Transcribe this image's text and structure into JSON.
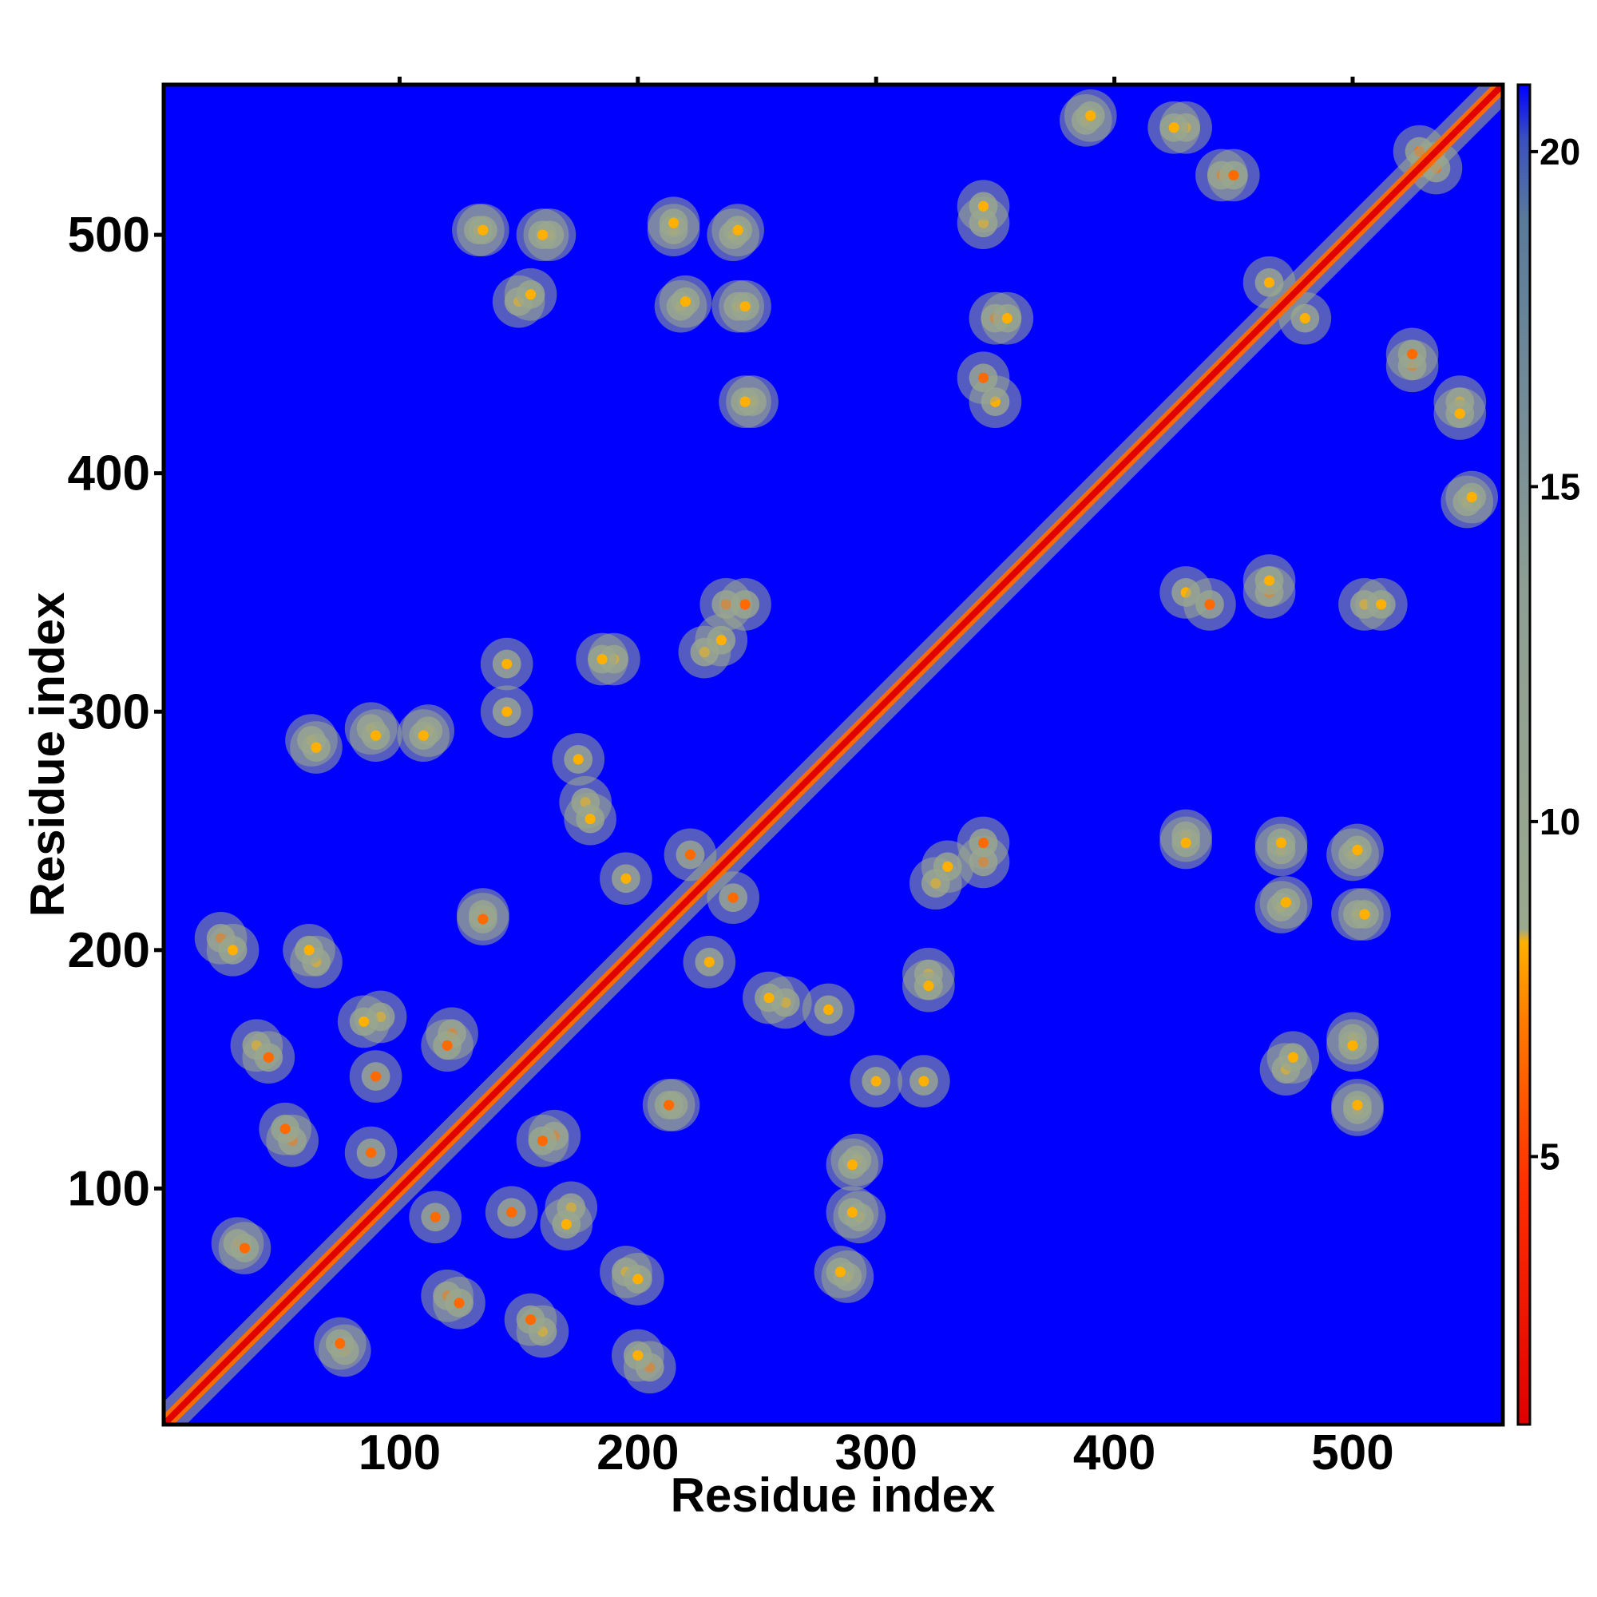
{
  "chart_data": {
    "type": "heatmap",
    "title": "",
    "xlabel": "Residue index",
    "ylabel": "Residue index",
    "xlim": [
      1,
      563
    ],
    "ylim": [
      1,
      563
    ],
    "x_ticks": [
      100,
      200,
      300,
      400,
      500
    ],
    "y_ticks": [
      100,
      200,
      300,
      400,
      500
    ],
    "grid": false,
    "colorbar": {
      "range": [
        1,
        21
      ],
      "ticks": [
        5,
        10,
        15,
        20
      ],
      "threshold_red_max": 8,
      "colors": {
        "low": "#e00000",
        "mid_low": "#ff6a00",
        "mid": "#ffb000",
        "grey": "#9aa88e",
        "grey_blue": "#5a7a9a",
        "high": "#0000ff"
      }
    },
    "matrix_description": "symmetric pairwise residue distance map (Angstrom-like scale); diagonal is minimum distance",
    "contact_clusters": [
      {
        "x": 25,
        "y": 205,
        "d": 6
      },
      {
        "x": 32,
        "y": 77,
        "d": 6
      },
      {
        "x": 40,
        "y": 160,
        "d": 7
      },
      {
        "x": 55,
        "y": 120,
        "d": 6
      },
      {
        "x": 63,
        "y": 288,
        "d": 9
      },
      {
        "x": 65,
        "y": 195,
        "d": 7
      },
      {
        "x": 75,
        "y": 35,
        "d": 5
      },
      {
        "x": 88,
        "y": 293,
        "d": 8
      },
      {
        "x": 90,
        "y": 147,
        "d": 6
      },
      {
        "x": 92,
        "y": 172,
        "d": 7
      },
      {
        "x": 112,
        "y": 292,
        "d": 9
      },
      {
        "x": 115,
        "y": 88,
        "d": 6
      },
      {
        "x": 122,
        "y": 165,
        "d": 5
      },
      {
        "x": 125,
        "y": 52,
        "d": 6
      },
      {
        "x": 133,
        "y": 502,
        "d": 8
      },
      {
        "x": 135,
        "y": 215,
        "d": 6
      },
      {
        "x": 145,
        "y": 320,
        "d": 8
      },
      {
        "x": 150,
        "y": 472,
        "d": 8
      },
      {
        "x": 155,
        "y": 45,
        "d": 6
      },
      {
        "x": 160,
        "y": 120,
        "d": 6
      },
      {
        "x": 163,
        "y": 500,
        "d": 7
      },
      {
        "x": 170,
        "y": 85,
        "d": 7
      },
      {
        "x": 175,
        "y": 280,
        "d": 7
      },
      {
        "x": 178,
        "y": 262,
        "d": 7
      },
      {
        "x": 190,
        "y": 322,
        "d": 8
      },
      {
        "x": 200,
        "y": 62,
        "d": 7
      },
      {
        "x": 200,
        "y": 30,
        "d": 8
      },
      {
        "x": 213,
        "y": 135,
        "d": 6
      },
      {
        "x": 215,
        "y": 502,
        "d": 8
      },
      {
        "x": 218,
        "y": 470,
        "d": 8
      },
      {
        "x": 222,
        "y": 240,
        "d": 6
      },
      {
        "x": 228,
        "y": 325,
        "d": 7
      },
      {
        "x": 230,
        "y": 195,
        "d": 7
      },
      {
        "x": 237,
        "y": 345,
        "d": 6
      },
      {
        "x": 240,
        "y": 500,
        "d": 8
      },
      {
        "x": 242,
        "y": 470,
        "d": 8
      },
      {
        "x": 248,
        "y": 430,
        "d": 7
      },
      {
        "x": 255,
        "y": 180,
        "d": 7
      },
      {
        "x": 285,
        "y": 65,
        "d": 8
      },
      {
        "x": 290,
        "y": 110,
        "d": 8
      },
      {
        "x": 290,
        "y": 90,
        "d": 8
      },
      {
        "x": 300,
        "y": 145,
        "d": 9
      },
      {
        "x": 322,
        "y": 185,
        "d": 7
      },
      {
        "x": 330,
        "y": 235,
        "d": 7
      },
      {
        "x": 345,
        "y": 245,
        "d": 6
      },
      {
        "x": 345,
        "y": 505,
        "d": 8
      },
      {
        "x": 350,
        "y": 465,
        "d": 6
      },
      {
        "x": 350,
        "y": 430,
        "d": 7
      },
      {
        "x": 388,
        "y": 548,
        "d": 8
      },
      {
        "x": 430,
        "y": 545,
        "d": 7
      },
      {
        "x": 430,
        "y": 245,
        "d": 8
      },
      {
        "x": 440,
        "y": 345,
        "d": 6
      },
      {
        "x": 445,
        "y": 525,
        "d": 6
      },
      {
        "x": 465,
        "y": 355,
        "d": 7
      },
      {
        "x": 470,
        "y": 245,
        "d": 8
      },
      {
        "x": 472,
        "y": 220,
        "d": 8
      },
      {
        "x": 475,
        "y": 155,
        "d": 7
      },
      {
        "x": 480,
        "y": 465,
        "d": 7
      },
      {
        "x": 500,
        "y": 160,
        "d": 7
      },
      {
        "x": 502,
        "y": 135,
        "d": 8
      },
      {
        "x": 502,
        "y": 242,
        "d": 8
      },
      {
        "x": 505,
        "y": 215,
        "d": 8
      },
      {
        "x": 512,
        "y": 345,
        "d": 8
      },
      {
        "x": 525,
        "y": 450,
        "d": 6
      },
      {
        "x": 535,
        "y": 528,
        "d": 5
      },
      {
        "x": 545,
        "y": 425,
        "d": 8
      },
      {
        "x": 550,
        "y": 390,
        "d": 8
      }
    ]
  }
}
